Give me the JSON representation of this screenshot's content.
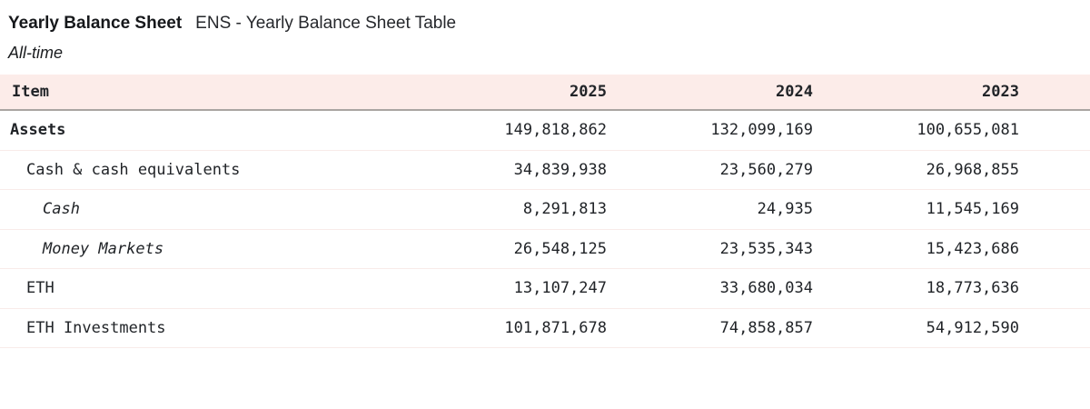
{
  "header": {
    "title": "Yearly Balance Sheet",
    "subtitle": "ENS - Yearly Balance Sheet Table",
    "period": "All-time"
  },
  "table": {
    "columns": [
      "Item",
      "2025",
      "2024",
      "2023"
    ],
    "rows": [
      {
        "label": "Assets",
        "level": 0,
        "style": "bold",
        "values": [
          "149,818,862",
          "132,099,169",
          "100,655,081"
        ]
      },
      {
        "label": "Cash & cash equivalents",
        "level": 1,
        "style": "normal",
        "values": [
          "34,839,938",
          "23,560,279",
          "26,968,855"
        ]
      },
      {
        "label": "Cash",
        "level": 2,
        "style": "italic",
        "values": [
          "8,291,813",
          "24,935",
          "11,545,169"
        ]
      },
      {
        "label": "Money Markets",
        "level": 2,
        "style": "italic",
        "values": [
          "26,548,125",
          "23,535,343",
          "15,423,686"
        ]
      },
      {
        "label": "ETH",
        "level": 1,
        "style": "normal",
        "values": [
          "13,107,247",
          "33,680,034",
          "18,773,636"
        ]
      },
      {
        "label": "ETH Investments",
        "level": 1,
        "style": "normal",
        "values": [
          "101,871,678",
          "74,858,857",
          "54,912,590"
        ]
      }
    ]
  },
  "colors": {
    "header_background": "#fcece9",
    "header_border": "#a9a5a2",
    "row_separator": "#f8ebe9",
    "text": "#212428"
  }
}
